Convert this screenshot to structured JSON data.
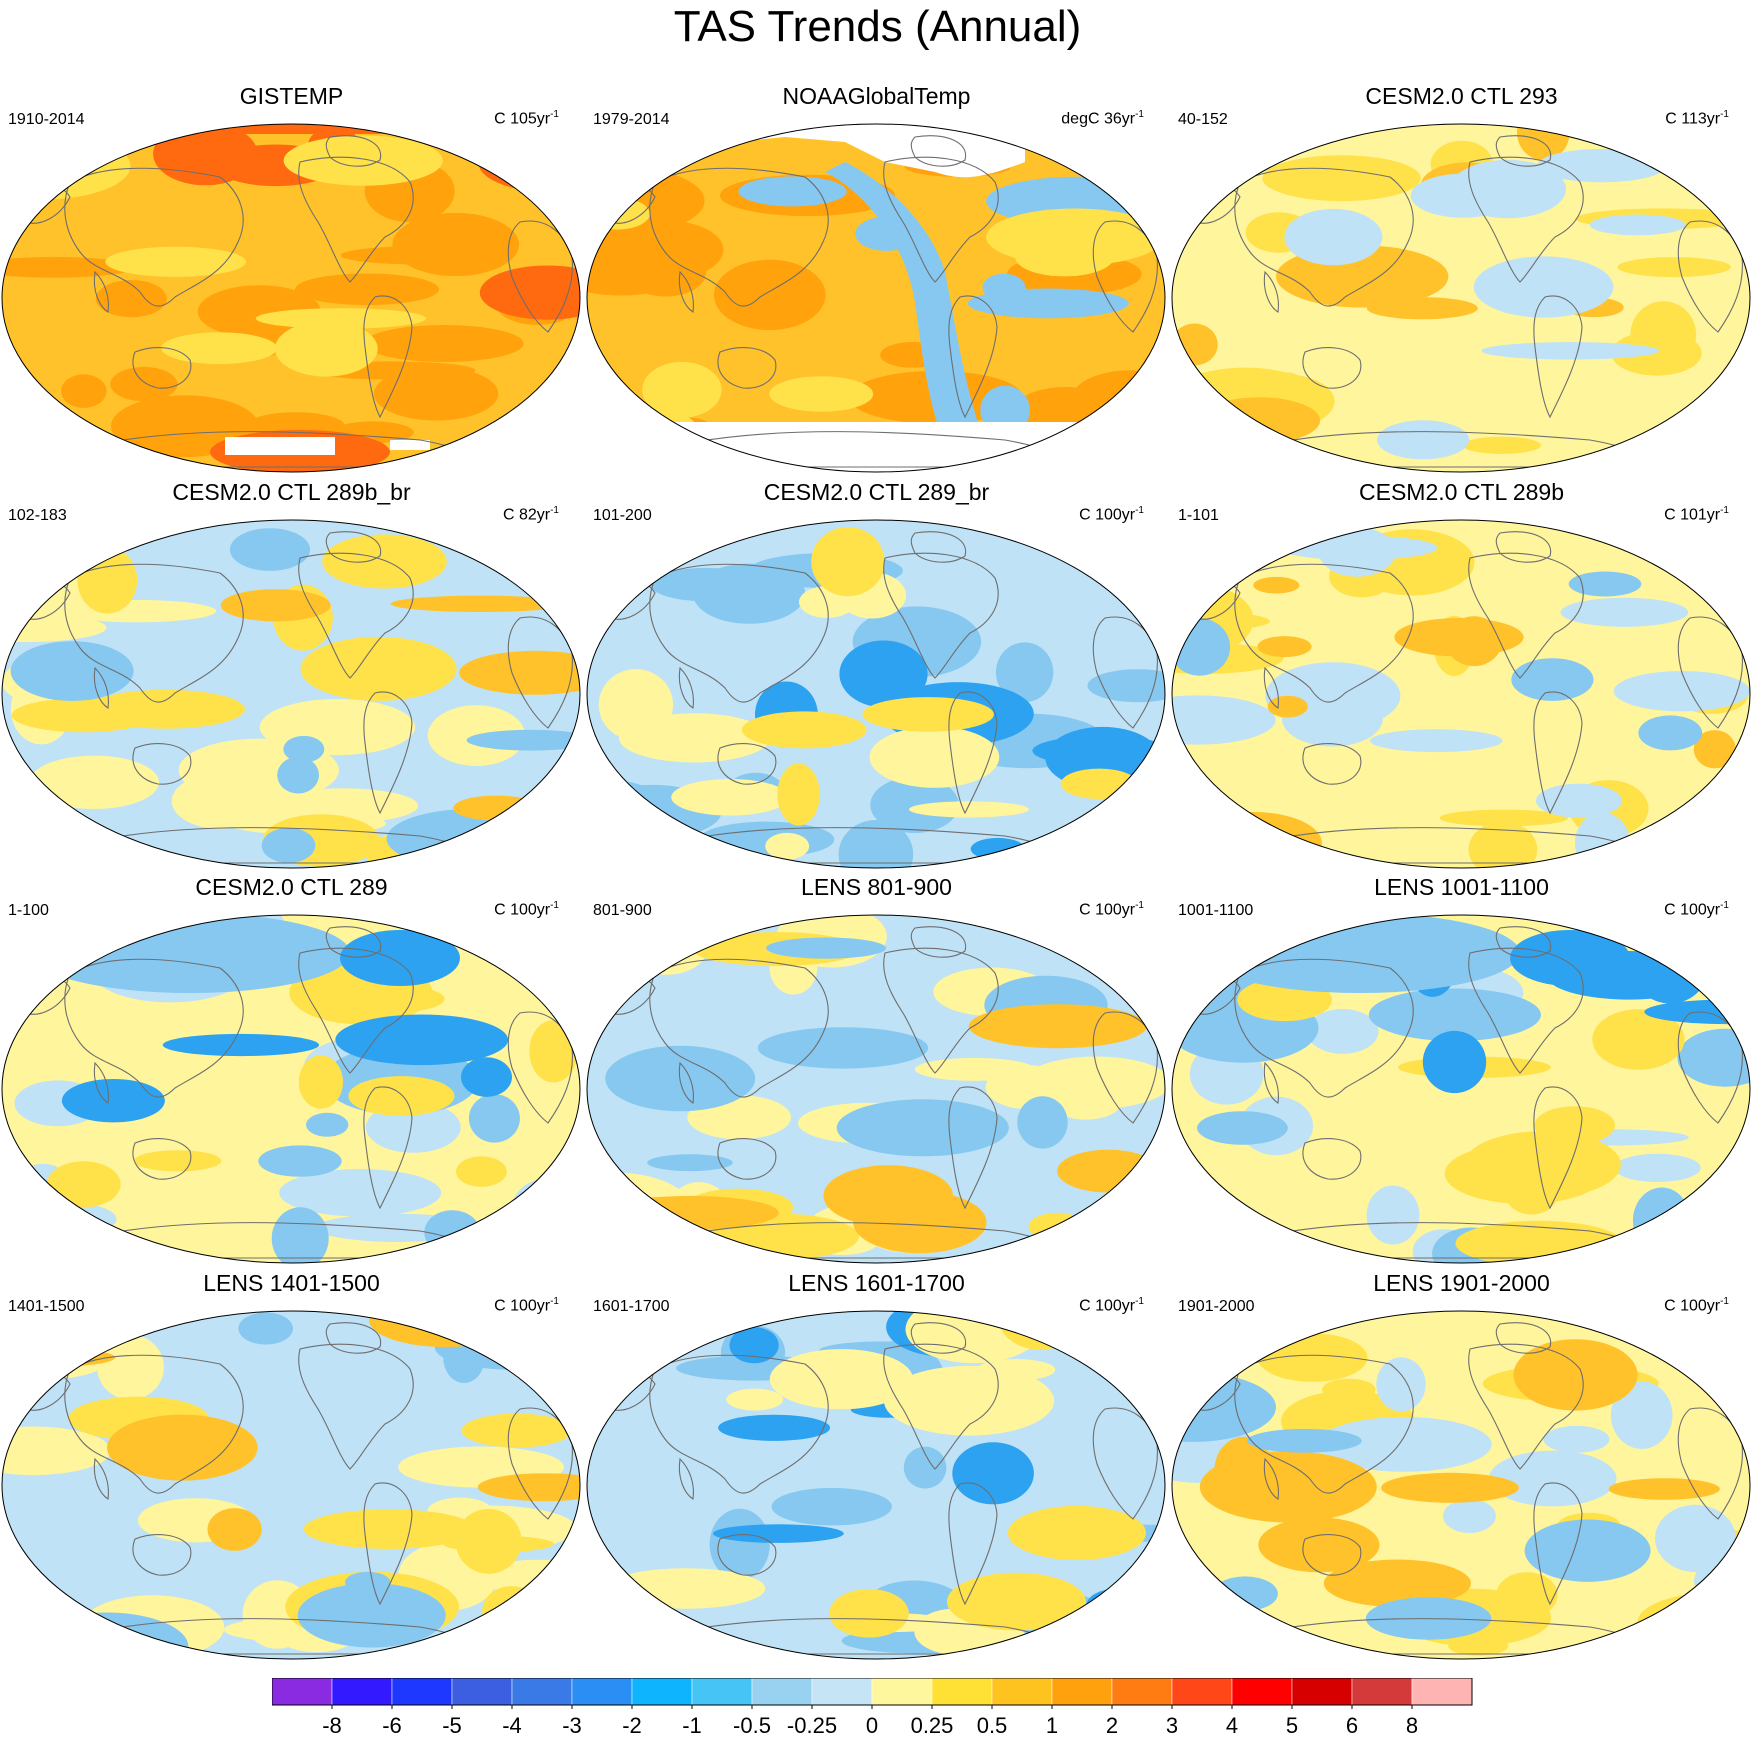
{
  "figure_title": "TAS Trends (Annual)",
  "panels": [
    {
      "title": "GISTEMP",
      "left_label": "1910-2014",
      "right_label": "C 105yr",
      "right_sup": "-1",
      "style": "warm",
      "mask": "both"
    },
    {
      "title": "NOAAGlobalTemp",
      "left_label": "1979-2014",
      "right_label": "degC 36yr",
      "right_sup": "-1",
      "style": "noaa",
      "mask": "noaa"
    },
    {
      "title": "CESM2.0 CTL 293",
      "left_label": "40-152",
      "right_label": "C 113yr",
      "right_sup": "-1",
      "style": "mild-warm",
      "mask": "none"
    },
    {
      "title": "CESM2.0 CTL 289b_br",
      "left_label": "102-183",
      "right_label": "C 82yr",
      "right_sup": "-1",
      "style": "mixed",
      "mask": "none"
    },
    {
      "title": "CESM2.0 CTL 289_br",
      "left_label": "101-200",
      "right_label": "C 100yr",
      "right_sup": "-1",
      "style": "cool",
      "mask": "none"
    },
    {
      "title": "CESM2.0 CTL 289b",
      "left_label": "1-101",
      "right_label": "C 101yr",
      "right_sup": "-1",
      "style": "mixed-warm",
      "mask": "none"
    },
    {
      "title": "CESM2.0 CTL 289",
      "left_label": "1-100",
      "right_label": "C 100yr",
      "right_sup": "-1",
      "style": "cool-north",
      "mask": "none"
    },
    {
      "title": "LENS 801-900",
      "left_label": "801-900",
      "right_label": "C 100yr",
      "right_sup": "-1",
      "style": "mixed",
      "mask": "none"
    },
    {
      "title": "LENS 1001-1100",
      "left_label": "1001-1100",
      "right_label": "C 100yr",
      "right_sup": "-1",
      "style": "cool-north",
      "mask": "none"
    },
    {
      "title": "LENS 1401-1500",
      "left_label": "1401-1500",
      "right_label": "C 100yr",
      "right_sup": "-1",
      "style": "mixed",
      "mask": "none"
    },
    {
      "title": "LENS 1601-1700",
      "left_label": "1601-1700",
      "right_label": "C 100yr",
      "right_sup": "-1",
      "style": "cool",
      "mask": "none"
    },
    {
      "title": "LENS 1901-2000",
      "left_label": "1901-2000",
      "right_label": "C 100yr",
      "right_sup": "-1",
      "style": "mixed-warm",
      "mask": "none"
    }
  ],
  "chart_data": {
    "type": "heatmap",
    "title": "TAS Trends (Annual)",
    "projection": "Winkel-type global map, Pacific-centred",
    "colorbar": {
      "tick_labels": [
        "-8",
        "-6",
        "-5",
        "-4",
        "-3",
        "-2",
        "-1",
        "-0.5",
        "-0.25",
        "0",
        "0.25",
        "0.5",
        "1",
        "2",
        "3",
        "4",
        "5",
        "6",
        "8"
      ],
      "colors": [
        "#8a2be2",
        "#3319ff",
        "#1e38ff",
        "#3b5fe0",
        "#3a7ae6",
        "#2a8ef5",
        "#0fb4ff",
        "#45c4f5",
        "#98d2f0",
        "#c5e4f6",
        "#fff79e",
        "#ffe035",
        "#ffc31f",
        "#ffa10d",
        "#ff7c12",
        "#ff4717",
        "#ff0000",
        "#d60000",
        "#d53a3a",
        "#ffb4b4"
      ]
    },
    "fill_palette": {
      "cool_dark": "#2da2f0",
      "cool_mid": "#86c8f0",
      "cool_light": "#bfe2f6",
      "neutral_warm": "#fff59d",
      "warm_light": "#ffe14a",
      "warm_mid": "#ffc22a",
      "warm_dark": "#ffa20c",
      "hot": "#ff6a10",
      "coast": "#6e6e6e",
      "missing": "#ffffff"
    }
  }
}
